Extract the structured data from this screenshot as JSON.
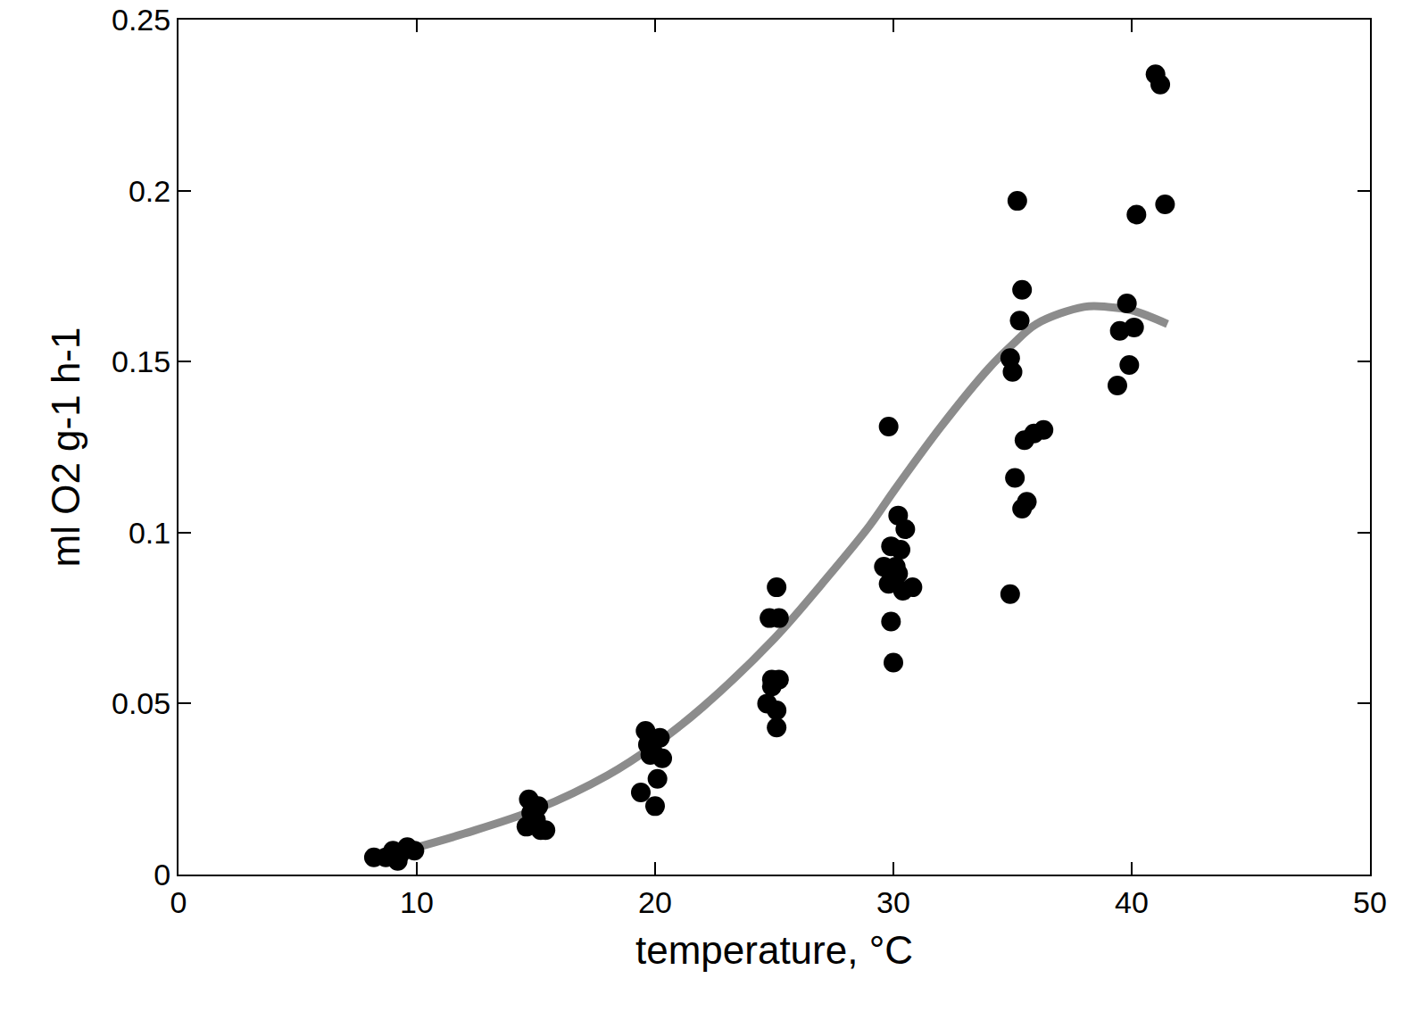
{
  "chart_data": {
    "type": "scatter",
    "x_label": "temperature, °C",
    "y_label": "ml O2 g-1 h-1",
    "xlim": [
      0,
      50
    ],
    "xticks": [
      0,
      10,
      20,
      30,
      40,
      50
    ],
    "ylim": [
      0,
      0.25
    ],
    "yticks": [
      0,
      0.05,
      0.1,
      0.15,
      0.2,
      0.25
    ],
    "grid": false,
    "series": [
      {
        "type": "scatter",
        "marker": "circle",
        "color": "#000000",
        "x": [
          8.2,
          8.7,
          9.0,
          9.3,
          9.6,
          9.9,
          9.2,
          14.7,
          14.8,
          15.0,
          15.2,
          14.6,
          15.4,
          15.1,
          14.9,
          19.6,
          19.7,
          19.8,
          20.2,
          20.3,
          20.1,
          19.4,
          20.0,
          19.9,
          25.1,
          24.8,
          25.2,
          24.9,
          25.2,
          24.7,
          25.1,
          25.1,
          24.9,
          29.8,
          30.2,
          30.5,
          29.9,
          30.3,
          29.6,
          30.1,
          29.8,
          30.8,
          30.4,
          29.9,
          30.0,
          30.2,
          35.2,
          35.4,
          35.3,
          34.9,
          35.0,
          35.5,
          35.9,
          36.3,
          35.1,
          35.6,
          35.4,
          34.9,
          41.0,
          41.2,
          41.4,
          40.2,
          39.8,
          39.5,
          40.1,
          39.9,
          39.4
        ],
        "values": [
          0.005,
          0.005,
          0.007,
          0.006,
          0.008,
          0.007,
          0.004,
          0.022,
          0.018,
          0.016,
          0.013,
          0.014,
          0.013,
          0.02,
          0.015,
          0.042,
          0.038,
          0.035,
          0.04,
          0.034,
          0.028,
          0.024,
          0.02,
          0.036,
          0.084,
          0.075,
          0.075,
          0.057,
          0.057,
          0.05,
          0.048,
          0.043,
          0.055,
          0.131,
          0.105,
          0.101,
          0.096,
          0.095,
          0.09,
          0.09,
          0.085,
          0.084,
          0.083,
          0.074,
          0.062,
          0.088,
          0.197,
          0.171,
          0.162,
          0.151,
          0.147,
          0.127,
          0.129,
          0.13,
          0.116,
          0.109,
          0.107,
          0.082,
          0.234,
          0.231,
          0.196,
          0.193,
          0.167,
          0.159,
          0.16,
          0.149,
          0.143
        ]
      },
      {
        "type": "line",
        "line_style": "solid",
        "color": "#8c8c8c",
        "x": [
          9.5,
          12,
          15,
          18,
          20,
          22,
          25,
          27,
          29,
          30,
          32,
          34,
          35,
          36,
          38,
          39,
          40,
          41.5
        ],
        "values": [
          0.007,
          0.012,
          0.019,
          0.029,
          0.038,
          0.049,
          0.069,
          0.085,
          0.102,
          0.112,
          0.131,
          0.148,
          0.155,
          0.161,
          0.166,
          0.166,
          0.165,
          0.161
        ]
      }
    ]
  }
}
